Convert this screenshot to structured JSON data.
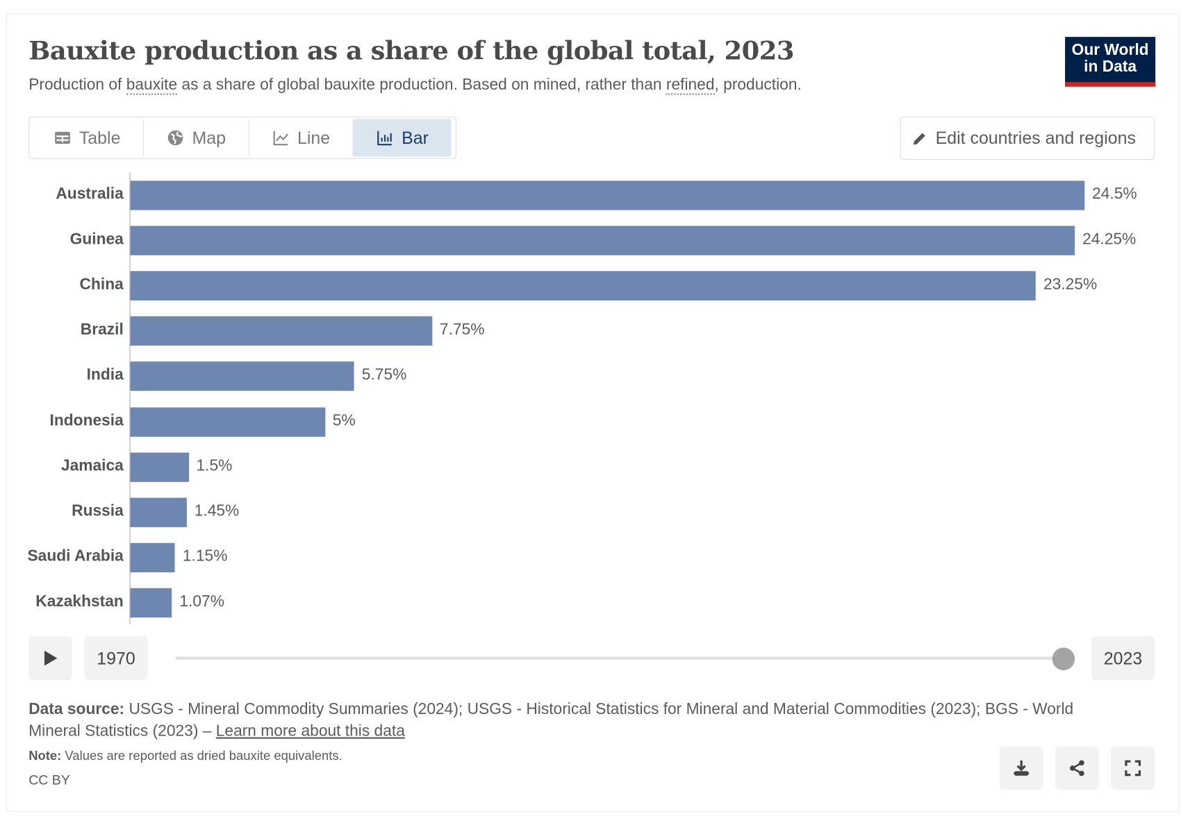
{
  "header": {
    "title": "Bauxite production as a share of the global total, 2023",
    "subtitle_parts": [
      "Production of ",
      "bauxite",
      " as a share of global bauxite production. Based on mined, rather than ",
      "refined",
      ", production."
    ],
    "logo": "Our World in Data",
    "logo_line1": "Our World",
    "logo_line2": "in Data"
  },
  "tabs": [
    {
      "label": "Table",
      "icon": "table-icon"
    },
    {
      "label": "Map",
      "icon": "globe-icon"
    },
    {
      "label": "Line",
      "icon": "line-chart-icon"
    },
    {
      "label": "Bar",
      "icon": "bar-chart-icon",
      "active": true
    }
  ],
  "edit_button": "Edit countries and regions",
  "chart_data": {
    "type": "bar",
    "orientation": "horizontal",
    "title": "Bauxite production as a share of the global total, 2023",
    "categories": [
      "Australia",
      "Guinea",
      "China",
      "Brazil",
      "India",
      "Indonesia",
      "Jamaica",
      "Russia",
      "Saudi Arabia",
      "Kazakhstan"
    ],
    "values": [
      24.5,
      24.25,
      23.25,
      7.75,
      5.75,
      5,
      1.5,
      1.45,
      1.15,
      1.07
    ],
    "labels": [
      "24.5%",
      "24.25%",
      "23.25%",
      "7.75%",
      "5.75%",
      "5%",
      "1.5%",
      "1.45%",
      "1.15%",
      "1.07%"
    ],
    "unit": "%",
    "xlim": [
      0,
      24.5
    ],
    "color": "#6d87b0"
  },
  "timeline": {
    "start": "1970",
    "end": "2023",
    "position": 1.0
  },
  "footer": {
    "source_label": "Data source:",
    "source_text": " USGS - Mineral Commodity Summaries (2024); USGS - Historical Statistics for Mineral and Material Commodities (2023); BGS - World Mineral Statistics (2023) – ",
    "learn_more": "Learn more about this data",
    "note_label": "Note:",
    "note_text": " Values are reported as dried bauxite equivalents.",
    "license": "CC BY"
  }
}
